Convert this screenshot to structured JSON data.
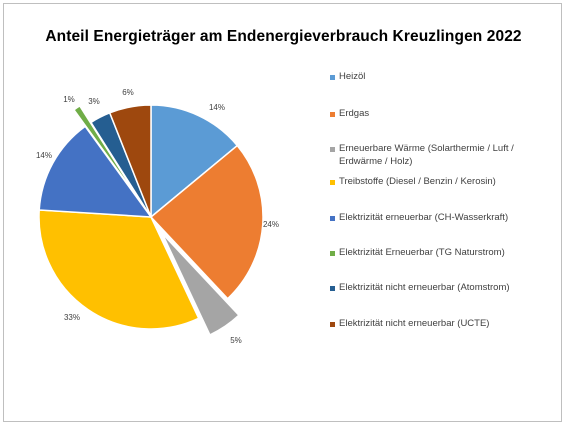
{
  "chart_data": {
    "type": "pie",
    "title": "Anteil Energieträger am Endenergieverbrauch Kreuzlingen 2022",
    "slices": [
      {
        "label": "Heizöl",
        "value": 14,
        "display": "14%",
        "color": "#5b9bd5"
      },
      {
        "label": "Erdgas",
        "value": 24,
        "display": "24%",
        "color": "#ed7d31"
      },
      {
        "label": "Erneuerbare Wärme (Solarthermie / Luft / Erdwärme / Holz)",
        "value": 5,
        "display": "5%",
        "color": "#a5a5a5",
        "exploded": true
      },
      {
        "label": "Treibstoffe (Diesel / Benzin / Kerosin)",
        "value": 33,
        "display": "33%",
        "color": "#ffc000"
      },
      {
        "label": "Elektrizität erneuerbar (CH-Wasserkraft)",
        "value": 14,
        "display": "14%",
        "color": "#4472c4"
      },
      {
        "label": "Elektrizität Erneuerbar (TG Naturstrom)",
        "value": 1,
        "display": "1%",
        "color": "#70ad47",
        "exploded": true
      },
      {
        "label": "Elektrizität nicht erneuerbar (Atomstrom)",
        "value": 3,
        "display": "3%",
        "color": "#255e91"
      },
      {
        "label": "Elektrizität nicht erneuerbar (UCTE)",
        "value": 6,
        "display": "6%",
        "color": "#9e480e"
      }
    ],
    "legend_position": "right"
  }
}
